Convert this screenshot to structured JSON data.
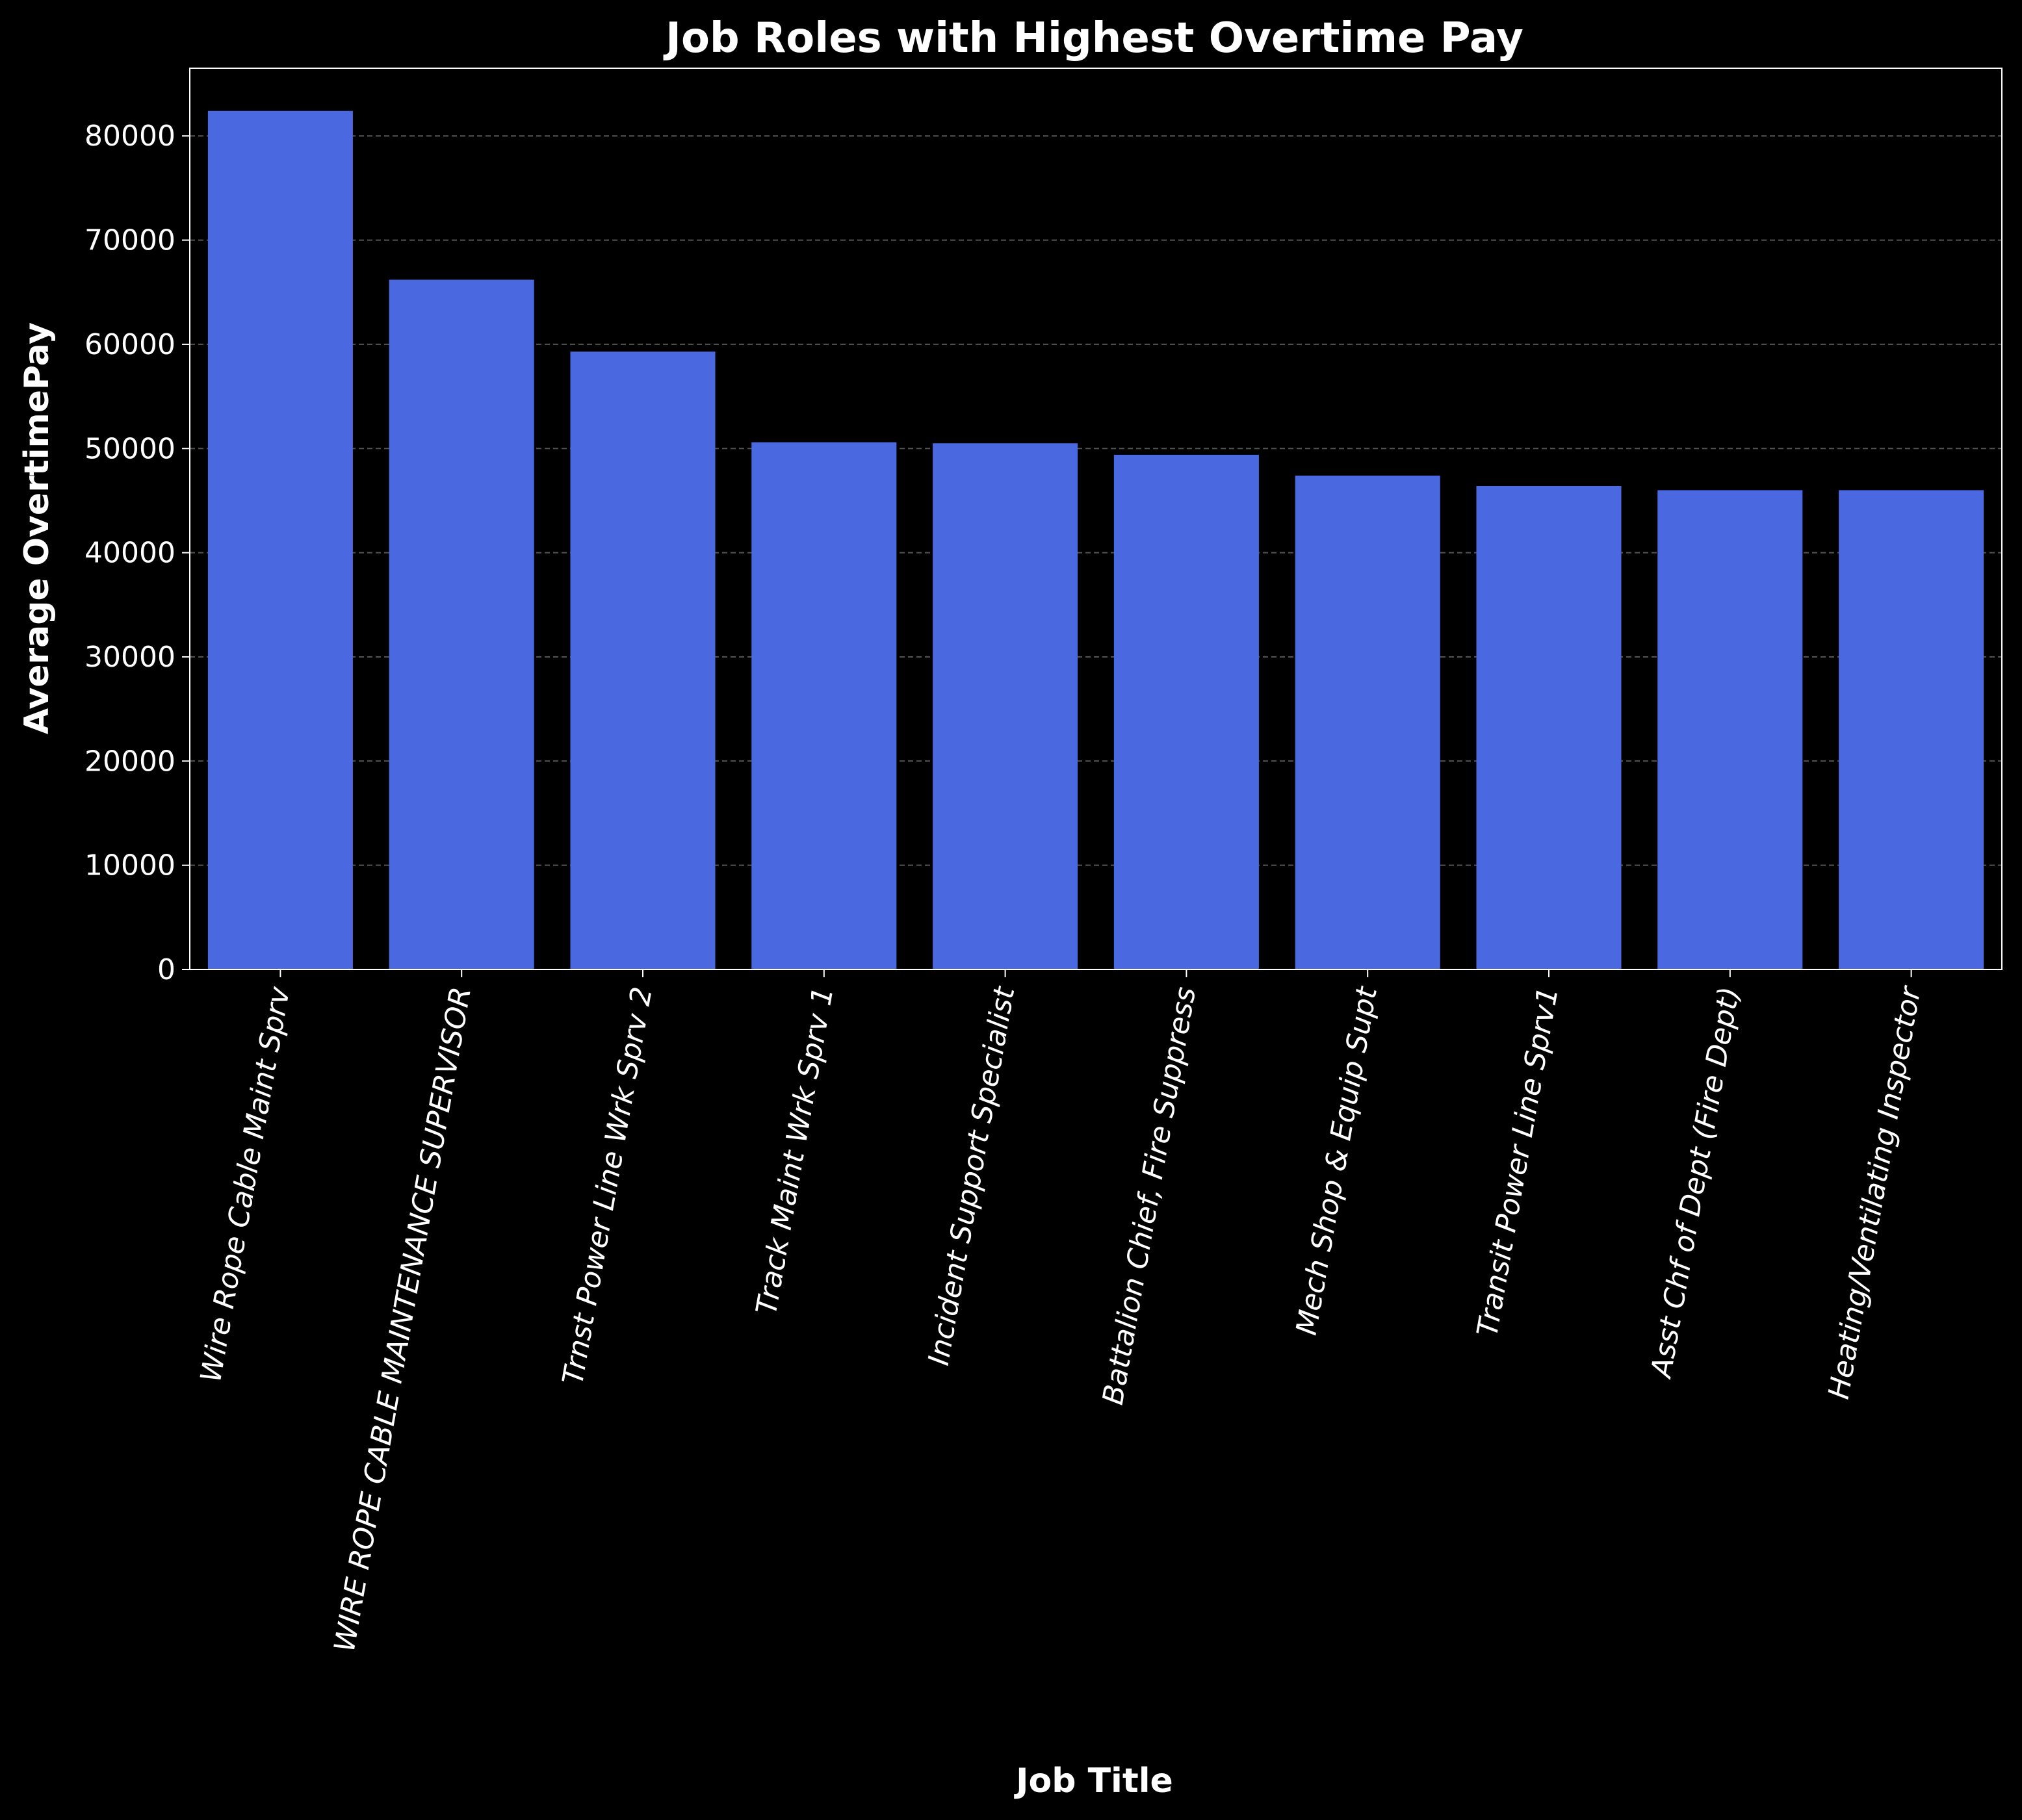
{
  "chart_data": {
    "type": "bar",
    "title": "Job Roles with Highest Overtime Pay",
    "xlabel": "Job Title",
    "ylabel": "Average OvertimePay",
    "categories": [
      "Wire Rope Cable Maint Sprv",
      "WIRE ROPE CABLE MAINTENANCE SUPERVISOR",
      "Trnst Power Line Wrk Sprv 2",
      "Track Maint Wrk Sprv 1",
      "Incident Support Specialist",
      "Battalion Chief, Fire Suppress",
      "Mech Shop & Equip Supt",
      "Transit Power Line Sprv1",
      "Asst Chf of Dept (Fire Dept)",
      "Heating/Ventilating Inspector"
    ],
    "values": [
      82400,
      66200,
      59300,
      50600,
      50500,
      49400,
      47400,
      46400,
      46000,
      46000
    ],
    "ylim": [
      0,
      86500
    ],
    "yticks": [
      0,
      10000,
      20000,
      30000,
      40000,
      50000,
      60000,
      70000,
      80000
    ],
    "grid": "y-dashed",
    "bar_color": "#4a69e0",
    "background_color": "#000000",
    "text_color": "#ffffff",
    "grid_color": "#555555"
  }
}
